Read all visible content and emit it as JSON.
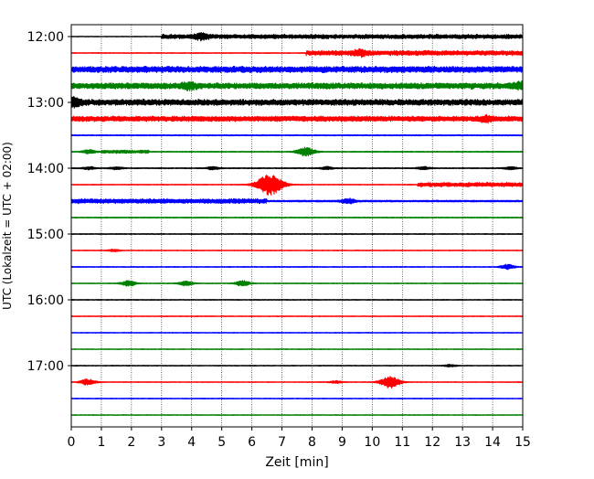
{
  "chart_data": {
    "type": "line",
    "xlabel": "Zeit  [min]",
    "ylabel": "UTC (Lokalzeit = UTC + 02:00)",
    "xlim": [
      0,
      15
    ],
    "x_ticks": [
      "0",
      "1",
      "2",
      "3",
      "4",
      "5",
      "6",
      "7",
      "8",
      "9",
      "10",
      "11",
      "12",
      "13",
      "14",
      "15"
    ],
    "y_ticks": [
      "12:00",
      "13:00",
      "14:00",
      "15:00",
      "16:00",
      "17:00"
    ],
    "row_interval_minutes": 15,
    "first_row": "12:00",
    "row_count": 24,
    "grid": "vertical dotted lines at each minute",
    "trace_colors": [
      "#000000",
      "#ff0000",
      "#0000ff",
      "#008000"
    ],
    "traces": [
      {
        "start": "12:00",
        "color": "#000000",
        "base": 0.12,
        "events": [
          {
            "x": [
              3.0,
              15.0
            ],
            "amp": 0.55
          },
          {
            "x": [
              4.3
            ],
            "amp": 0.85
          }
        ]
      },
      {
        "start": "12:15",
        "color": "#ff0000",
        "base": 0.15,
        "events": [
          {
            "x": [
              7.8,
              15.0
            ],
            "amp": 0.6
          },
          {
            "x": [
              9.6
            ],
            "amp": 0.7
          }
        ]
      },
      {
        "start": "12:30",
        "color": "#0000ff",
        "base": 0.45,
        "events": [
          {
            "x": [
              0.0,
              15.0
            ],
            "amp": 0.55
          }
        ]
      },
      {
        "start": "12:45",
        "color": "#008000",
        "base": 0.4,
        "events": [
          {
            "x": [
              0.0,
              15.0
            ],
            "amp": 0.55
          },
          {
            "x": [
              3.9
            ],
            "amp": 0.8
          },
          {
            "x": [
              14.9
            ],
            "amp": 0.8
          }
        ]
      },
      {
        "start": "13:00",
        "color": "#000000",
        "base": 0.4,
        "events": [
          {
            "x": [
              0.0,
              15.0
            ],
            "amp": 0.55
          },
          {
            "x": [
              0.05
            ],
            "amp": 1.2
          }
        ]
      },
      {
        "start": "13:15",
        "color": "#ff0000",
        "base": 0.35,
        "events": [
          {
            "x": [
              0.0,
              15.0
            ],
            "amp": 0.5
          },
          {
            "x": [
              13.8
            ],
            "amp": 0.7
          }
        ]
      },
      {
        "start": "13:30",
        "color": "#0000ff",
        "base": 0.2,
        "events": []
      },
      {
        "start": "13:45",
        "color": "#008000",
        "base": 0.18,
        "events": [
          {
            "x": [
              0.6
            ],
            "amp": 0.7
          },
          {
            "x": [
              7.8
            ],
            "amp": 1.5
          },
          {
            "x": [
              1.0,
              2.6
            ],
            "amp": 0.35
          }
        ]
      },
      {
        "start": "14:00",
        "color": "#000000",
        "base": 0.18,
        "events": [
          {
            "x": [
              0.6,
              1.5,
              4.7,
              8.5,
              11.7,
              14.6
            ],
            "amp": 0.45
          }
        ]
      },
      {
        "start": "14:15",
        "color": "#ff0000",
        "base": 0.15,
        "events": [
          {
            "x": [
              6.6
            ],
            "amp": 3.5
          },
          {
            "x": [
              11.5,
              15.0
            ],
            "amp": 0.5
          }
        ]
      },
      {
        "start": "14:30",
        "color": "#0000ff",
        "base": 0.3,
        "events": [
          {
            "x": [
              0.0,
              6.5
            ],
            "amp": 0.45
          },
          {
            "x": [
              9.2
            ],
            "amp": 0.8
          }
        ]
      },
      {
        "start": "14:45",
        "color": "#008000",
        "base": 0.18,
        "events": []
      },
      {
        "start": "15:00",
        "color": "#000000",
        "base": 0.16,
        "events": []
      },
      {
        "start": "15:15",
        "color": "#ff0000",
        "base": 0.14,
        "events": [
          {
            "x": [
              1.4
            ],
            "amp": 0.4
          }
        ]
      },
      {
        "start": "15:30",
        "color": "#0000ff",
        "base": 0.16,
        "events": [
          {
            "x": [
              14.5
            ],
            "amp": 0.8
          }
        ]
      },
      {
        "start": "15:45",
        "color": "#008000",
        "base": 0.15,
        "events": [
          {
            "x": [
              1.9
            ],
            "amp": 0.9
          },
          {
            "x": [
              3.8
            ],
            "amp": 0.8
          },
          {
            "x": [
              5.7
            ],
            "amp": 0.9
          }
        ]
      },
      {
        "start": "16:00",
        "color": "#000000",
        "base": 0.15,
        "events": []
      },
      {
        "start": "16:15",
        "color": "#ff0000",
        "base": 0.14,
        "events": []
      },
      {
        "start": "16:30",
        "color": "#0000ff",
        "base": 0.14,
        "events": []
      },
      {
        "start": "16:45",
        "color": "#008000",
        "base": 0.14,
        "events": []
      },
      {
        "start": "17:00",
        "color": "#000000",
        "base": 0.14,
        "events": [
          {
            "x": [
              12.6
            ],
            "amp": 0.4
          }
        ]
      },
      {
        "start": "17:15",
        "color": "#ff0000",
        "base": 0.14,
        "events": [
          {
            "x": [
              0.55
            ],
            "amp": 1.0
          },
          {
            "x": [
              8.8
            ],
            "amp": 0.4
          },
          {
            "x": [
              10.6
            ],
            "amp": 2.0
          }
        ]
      },
      {
        "start": "17:30",
        "color": "#0000ff",
        "base": 0.15,
        "events": []
      },
      {
        "start": "17:45",
        "color": "#008000",
        "base": 0.14,
        "events": []
      }
    ]
  }
}
